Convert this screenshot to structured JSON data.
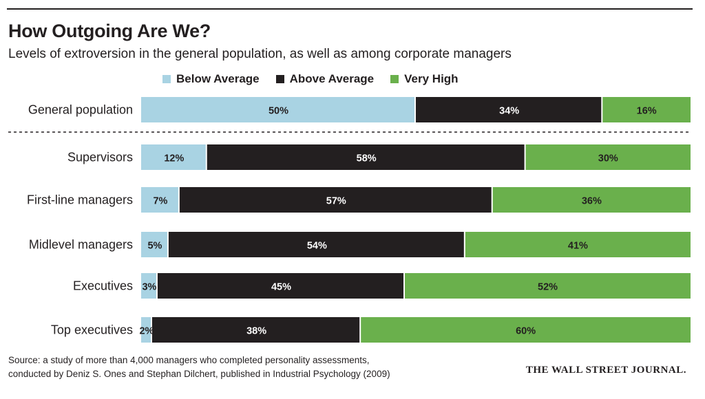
{
  "title": "How Outgoing Are We?",
  "subtitle": "Levels of extroversion in the general population, as well as among corporate managers",
  "legend": {
    "below": "Below Average",
    "above": "Above Average",
    "very": "Very High"
  },
  "source": {
    "line1": "Source: a study of more than 4,000 managers who completed personality assessments,",
    "line2": "conducted by Deniz S. Ones and Stephan Dilchert, published in Industrial Psychology (2009)"
  },
  "credit": "THE WALL STREET JOURNAL.",
  "colors": {
    "below": "#a9d3e3",
    "above": "#231f20",
    "very": "#6ab04c"
  },
  "chart_data": {
    "type": "bar",
    "orientation": "horizontal",
    "stacked": true,
    "unit": "%",
    "categories": [
      "General population",
      "Supervisors",
      "First-line managers",
      "Midlevel managers",
      "Executives",
      "Top executives"
    ],
    "series": [
      {
        "name": "Below Average",
        "values": [
          50,
          12,
          7,
          5,
          3,
          2
        ],
        "labels": [
          "50%",
          "12%",
          "7%",
          "5%",
          "3%",
          "2%"
        ]
      },
      {
        "name": "Above Average",
        "values": [
          34,
          58,
          57,
          54,
          45,
          38
        ],
        "labels": [
          "34%",
          "58%",
          "57%",
          "54%",
          "45%",
          "38%"
        ]
      },
      {
        "name": "Very High",
        "values": [
          16,
          30,
          36,
          41,
          52,
          60
        ],
        "labels": [
          "16%",
          "30%",
          "36%",
          "41%",
          "52%",
          "60%"
        ]
      }
    ],
    "xlim": [
      0,
      100
    ],
    "separator_after": "General population",
    "legend_position": "top"
  }
}
